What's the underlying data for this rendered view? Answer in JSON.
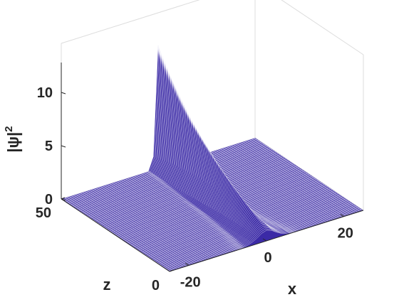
{
  "chart_data": {
    "type": "surface",
    "xlabel": "x",
    "ylabel": "z",
    "zlabel_base": "|ψ|",
    "zlabel_sup": "2",
    "xlim": [
      -25,
      25
    ],
    "ylim": [
      0,
      50
    ],
    "zlim": [
      0,
      12
    ],
    "x_ticks": [
      -20,
      0,
      20
    ],
    "x_tick_labels": [
      "-20",
      "0",
      "20"
    ],
    "y_ticks": [
      0,
      50
    ],
    "y_tick_labels": [
      "0",
      "50"
    ],
    "z_ticks": [
      0,
      5,
      10
    ],
    "z_tick_labels": [
      "0",
      "5",
      "10"
    ],
    "surface_color": "#3b2aa6",
    "mesh_color": "#ffffff",
    "grid": false,
    "series": [
      {
        "values_note_z": [
          0,
          5,
          10,
          15,
          20,
          25,
          30,
          35,
          40,
          45,
          50
        ],
        "peak_center_x": [
          0,
          0,
          0,
          0,
          0,
          0,
          0,
          0,
          0,
          0,
          0
        ],
        "peak_amplitude": [
          1.0,
          1.6,
          2.3,
          3.0,
          3.8,
          4.7,
          5.7,
          6.8,
          8.2,
          9.8,
          11.6
        ],
        "peak_width": [
          3.0,
          2.4,
          2.0,
          1.7,
          1.5,
          1.3,
          1.15,
          1.0,
          0.9,
          0.8,
          0.7
        ]
      }
    ]
  }
}
